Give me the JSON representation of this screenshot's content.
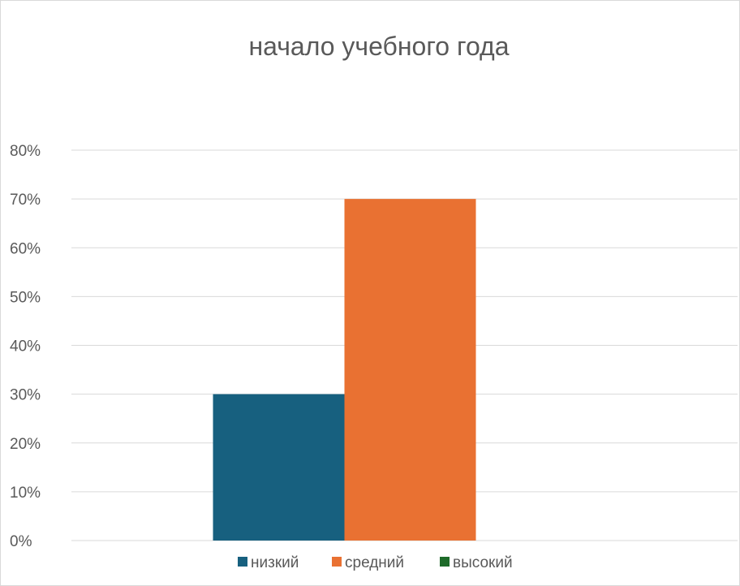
{
  "chart_data": {
    "type": "bar",
    "title": "начало учебного года",
    "xlabel": "",
    "ylabel": "",
    "ylim": [
      0,
      0.8
    ],
    "y_ticks": [
      0,
      0.1,
      0.2,
      0.3,
      0.4,
      0.5,
      0.6,
      0.7,
      0.8
    ],
    "y_tick_labels": [
      "0%",
      "10%",
      "20%",
      "30%",
      "40%",
      "50%",
      "60%",
      "70%",
      "80%"
    ],
    "y_format": "percent",
    "grid": true,
    "legend_position": "bottom",
    "categories": [
      ""
    ],
    "series": [
      {
        "name": "низкий",
        "values": [
          0.3
        ],
        "color": "#17607f"
      },
      {
        "name": "средний",
        "values": [
          0.7
        ],
        "color": "#e97132"
      },
      {
        "name": "высокий",
        "values": [
          0
        ],
        "color": "#1e6b2a"
      }
    ]
  }
}
